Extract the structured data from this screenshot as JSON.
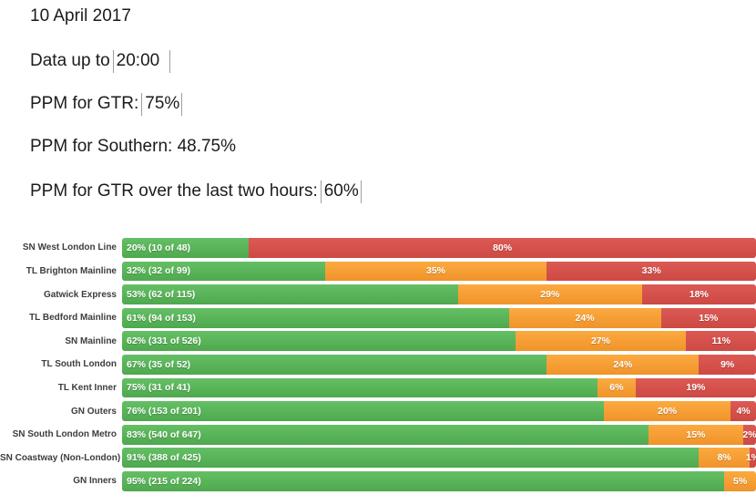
{
  "header": {
    "date_line": "10 April 2017",
    "data_up_to": {
      "label": "Data up to",
      "value": "20:00"
    },
    "ppm_gtr": {
      "label": "PPM for GTR:",
      "value": "75%"
    },
    "ppm_southern": {
      "label": "PPM for Southern:",
      "value": "48.75%"
    },
    "ppm_gtr_last_two_hours": {
      "label": "PPM for GTR over the last two hours:",
      "value": "60%"
    }
  },
  "colors": {
    "green": "#57b157",
    "amber": "#f7a035",
    "red": "#d5534e"
  },
  "chart_data": {
    "type": "bar",
    "orientation": "horizontal",
    "stacked": true,
    "value_unit": "percent",
    "xlim": [
      0,
      100
    ],
    "grid": false,
    "legend": "none",
    "categories": [
      "SN West London Line",
      "TL Brighton Mainline",
      "Gatwick Express",
      "TL Bedford Mainline",
      "SN Mainline",
      "TL South London",
      "TL Kent Inner",
      "GN Outers",
      "SN South London Metro",
      "SN Coastway (Non-London)",
      "GN Inners"
    ],
    "series": [
      {
        "name": "green",
        "values": [
          20,
          32,
          53,
          61,
          62,
          67,
          75,
          76,
          83,
          91,
          95
        ]
      },
      {
        "name": "amber",
        "values": [
          0,
          35,
          29,
          24,
          27,
          24,
          6,
          20,
          15,
          8,
          5
        ]
      },
      {
        "name": "red",
        "values": [
          80,
          33,
          18,
          15,
          11,
          9,
          19,
          4,
          2,
          1,
          0
        ]
      }
    ],
    "segment_labels": {
      "green": [
        "20% (10 of 48)",
        "32% (32 of 99)",
        "53% (62 of 115)",
        "61% (94 of 153)",
        "62% (331 of 526)",
        "67% (35 of 52)",
        "75% (31 of 41)",
        "76% (153 of 201)",
        "83% (540 of 647)",
        "91% (388 of 425)",
        "95% (215 of 224)"
      ],
      "amber": [
        "",
        "35%",
        "29%",
        "24%",
        "27%",
        "24%",
        "6%",
        "20%",
        "15%",
        "8%",
        "5%"
      ],
      "red": [
        "80%",
        "33%",
        "18%",
        "15%",
        "11%",
        "9%",
        "19%",
        "4%",
        "2%",
        "1%",
        ""
      ]
    }
  }
}
